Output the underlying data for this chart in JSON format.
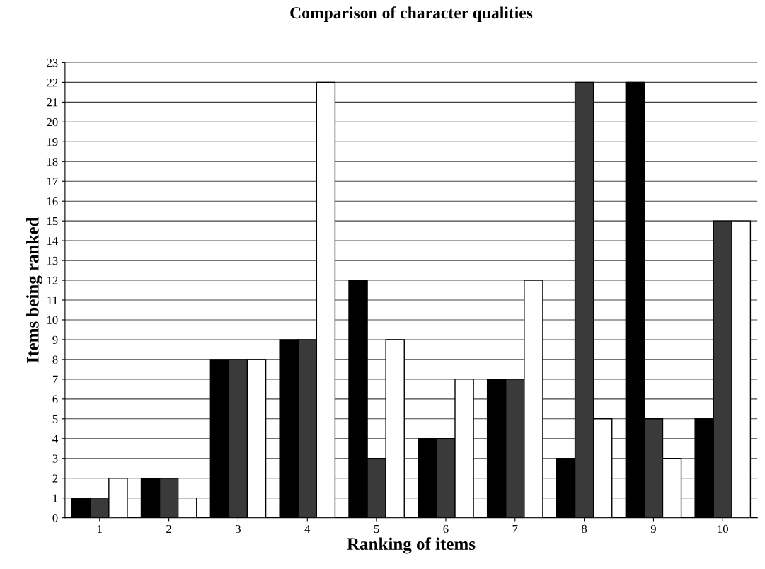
{
  "chart_data": {
    "type": "bar",
    "title": "Comparison of character qualities",
    "xlabel": "Ranking of items",
    "ylabel": "Items being ranked",
    "categories": [
      "1",
      "2",
      "3",
      "4",
      "5",
      "6",
      "7",
      "8",
      "9",
      "10"
    ],
    "series": [
      {
        "color": "#000000",
        "values": [
          1,
          2,
          8,
          9,
          12,
          4,
          7,
          3,
          22,
          5
        ]
      },
      {
        "color": "#3a3a3a",
        "values": [
          1,
          2,
          8,
          9,
          3,
          4,
          7,
          22,
          5,
          15
        ]
      },
      {
        "color": "#ffffff",
        "values": [
          2,
          1,
          8,
          22,
          9,
          7,
          12,
          5,
          3,
          15
        ]
      }
    ],
    "ylim": [
      0,
      23
    ],
    "yticks": [
      0,
      1,
      2,
      3,
      4,
      5,
      6,
      7,
      8,
      9,
      10,
      11,
      12,
      13,
      14,
      15,
      16,
      17,
      18,
      19,
      20,
      21,
      22,
      23
    ],
    "grid": "y",
    "legend": false
  }
}
